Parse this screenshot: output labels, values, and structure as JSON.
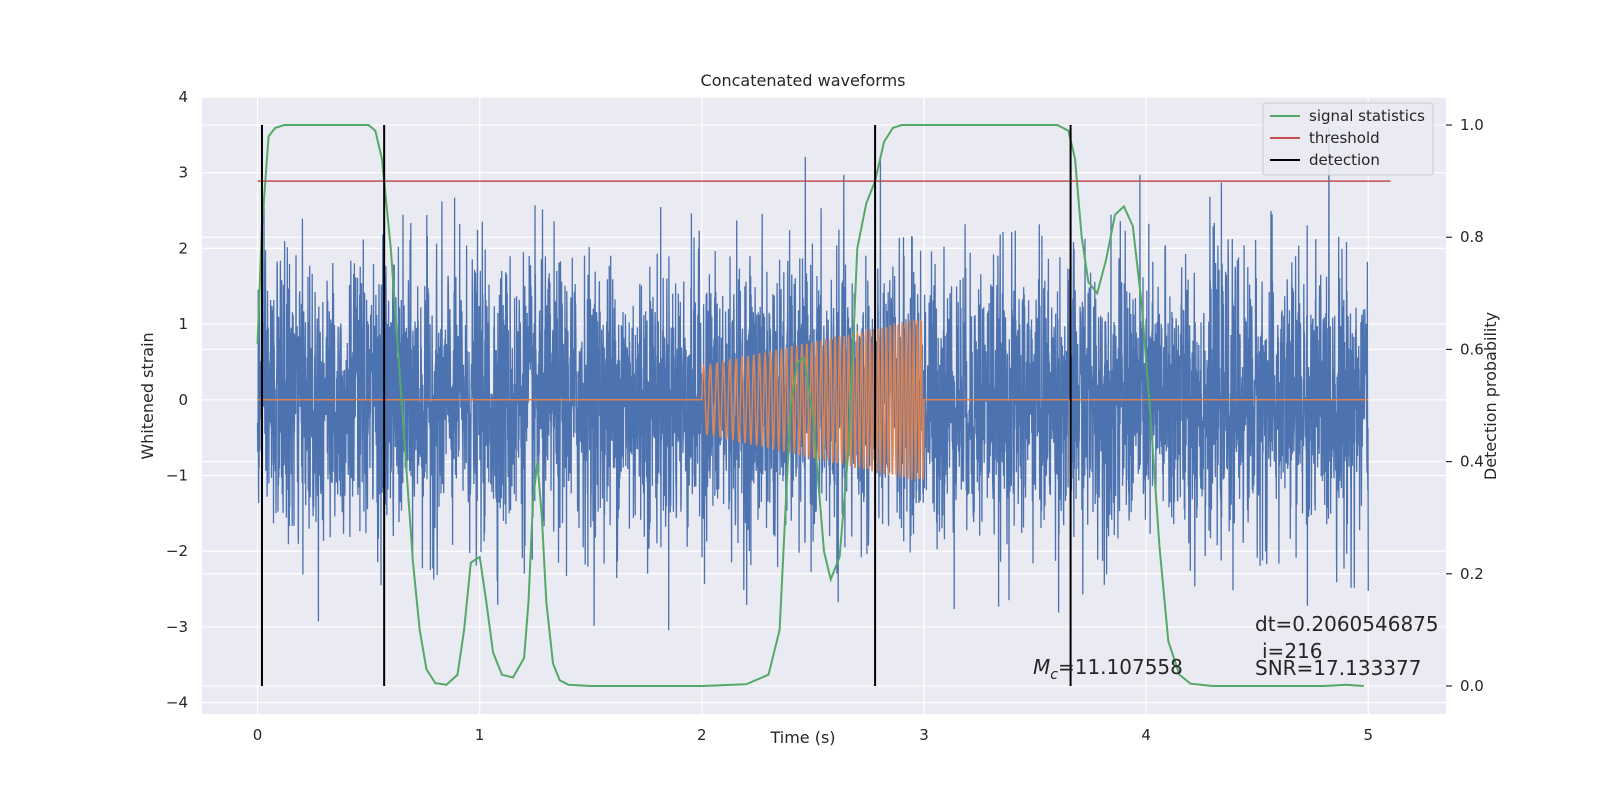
{
  "chart_data": {
    "type": "line",
    "title": "Concatenated waveforms",
    "xlabel": "Time (s)",
    "ylabel": "Whitened strain",
    "y2label": "Detection probability",
    "xlim": [
      -0.25,
      5.35
    ],
    "ylim": [
      -4.15,
      4.0
    ],
    "y2lim": [
      -0.05,
      1.05
    ],
    "x_ticks": [
      0,
      1,
      2,
      3,
      4,
      5
    ],
    "y_ticks": [
      -4,
      -3,
      -2,
      -1,
      0,
      1,
      2,
      3,
      4
    ],
    "y2_ticks": [
      0.0,
      0.2,
      0.4,
      0.6,
      0.8,
      1.0
    ],
    "x_tick_labels": [
      "0",
      "1",
      "2",
      "3",
      "4",
      "5"
    ],
    "y_tick_labels": [
      "−4",
      "−3",
      "−2",
      "−1",
      "0",
      "1",
      "2",
      "3",
      "4"
    ],
    "y2_tick_labels": [
      "0.0",
      "0.2",
      "0.4",
      "0.6",
      "0.8",
      "1.0"
    ],
    "grid": true,
    "legend_position": "top-right",
    "colors": {
      "strain": "#4c72b0",
      "template": "#dd8452",
      "signal_statistics": "#55a868",
      "threshold": "#c44e52",
      "detection": "#000000",
      "plot_background": "#eaeaf2",
      "grid": "#ffffff"
    },
    "series": [
      {
        "name": "signal statistics",
        "axis": "right",
        "x": [
          0.0,
          0.02,
          0.05,
          0.08,
          0.12,
          0.2,
          0.3,
          0.4,
          0.5,
          0.53,
          0.56,
          0.6,
          0.65,
          0.7,
          0.73,
          0.76,
          0.8,
          0.85,
          0.9,
          0.93,
          0.96,
          1.0,
          1.03,
          1.06,
          1.1,
          1.15,
          1.2,
          1.22,
          1.24,
          1.26,
          1.28,
          1.3,
          1.33,
          1.36,
          1.4,
          1.5,
          2.0,
          2.2,
          2.3,
          2.35,
          2.38,
          2.4,
          2.43,
          2.46,
          2.5,
          2.55,
          2.58,
          2.62,
          2.66,
          2.7,
          2.74,
          2.78,
          2.82,
          2.86,
          2.9,
          3.0,
          3.2,
          3.4,
          3.6,
          3.65,
          3.68,
          3.71,
          3.74,
          3.78,
          3.82,
          3.86,
          3.9,
          3.94,
          3.98,
          4.02,
          4.06,
          4.1,
          4.15,
          4.2,
          4.3,
          4.6,
          4.8,
          4.9,
          4.98
        ],
        "values": [
          0.61,
          0.82,
          0.98,
          0.995,
          1.0,
          1.0,
          1.0,
          1.0,
          1.0,
          0.99,
          0.94,
          0.78,
          0.5,
          0.22,
          0.1,
          0.03,
          0.005,
          0.002,
          0.02,
          0.1,
          0.22,
          0.23,
          0.15,
          0.06,
          0.02,
          0.015,
          0.05,
          0.15,
          0.33,
          0.4,
          0.3,
          0.15,
          0.04,
          0.01,
          0.002,
          0.0,
          0.0,
          0.003,
          0.02,
          0.1,
          0.34,
          0.5,
          0.575,
          0.585,
          0.48,
          0.24,
          0.19,
          0.23,
          0.42,
          0.78,
          0.86,
          0.9,
          0.97,
          0.995,
          1.0,
          1.0,
          1.0,
          1.0,
          1.0,
          0.99,
          0.94,
          0.8,
          0.72,
          0.7,
          0.76,
          0.84,
          0.855,
          0.82,
          0.68,
          0.48,
          0.25,
          0.08,
          0.02,
          0.004,
          0.0,
          0.0,
          0.0,
          0.002,
          0.0
        ]
      },
      {
        "name": "threshold",
        "axis": "right",
        "x": [
          0.0,
          5.1
        ],
        "values": [
          0.9,
          0.9
        ]
      },
      {
        "name": "detection",
        "axis": "right",
        "x": [
          0.02,
          0.57,
          2.78,
          3.66
        ],
        "values": [
          1.0,
          1.0,
          1.0,
          1.0
        ]
      }
    ]
  },
  "annotations": {
    "mc": "=11.107558",
    "dt": "dt=0.2060546875",
    "i": "i=216",
    "snr": "SNR=17.133377"
  }
}
